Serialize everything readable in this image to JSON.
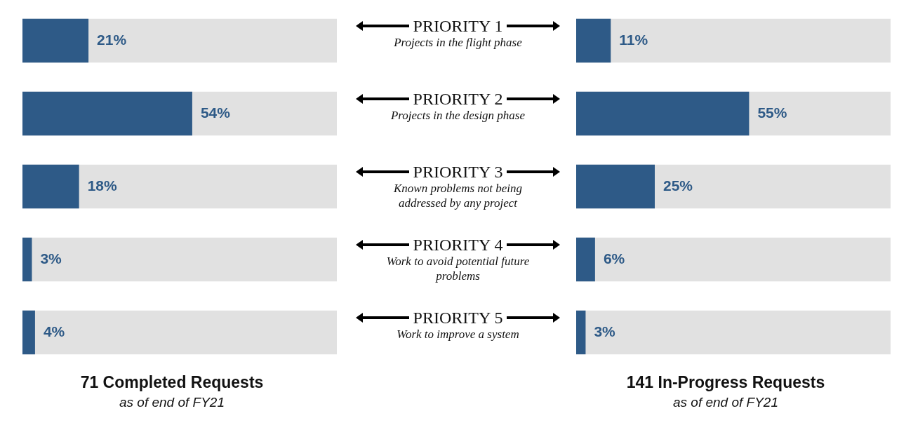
{
  "chart_data": [
    {
      "type": "bar",
      "orientation": "horizontal",
      "title": "71 Completed Requests",
      "subtitle": "as of end of FY21",
      "categories": [
        "PRIORITY 1",
        "PRIORITY 2",
        "PRIORITY 3",
        "PRIORITY 4",
        "PRIORITY 5"
      ],
      "values": [
        21,
        54,
        18,
        3,
        4
      ],
      "value_labels": [
        "21%",
        "54%",
        "18%",
        "3%",
        "4%"
      ],
      "color": "#2e5a87",
      "xlim": [
        0,
        100
      ],
      "tick_labels": "y",
      "annotations": [
        "Projects in the flight phase",
        "Projects in the design phase",
        "Known problems not being addressed by any project",
        "Work to avoid potential future problems",
        "Work to improve a system"
      ]
    },
    {
      "type": "bar",
      "orientation": "horizontal",
      "title": "141 In-Progress Requests",
      "subtitle": "as of end of FY21",
      "categories": [
        null,
        null,
        null,
        null,
        null
      ],
      "values": [
        11,
        55,
        25,
        6,
        3
      ],
      "value_labels": [
        "11%",
        "55%",
        "25%",
        "6%",
        "3%"
      ],
      "color": "#2e5a87",
      "xlim": [
        0,
        100
      ],
      "tick_labels": false
    }
  ]
}
